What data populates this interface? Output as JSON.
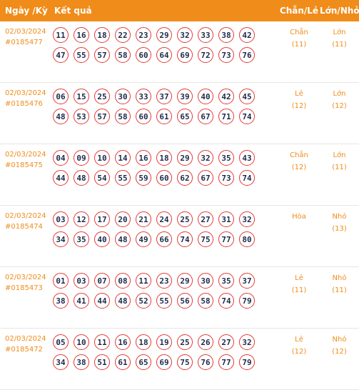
{
  "header": {
    "date_label": "Ngày /Kỳ",
    "result_label": "Kết quả",
    "even_odd_label": "Chẵn/Lẻ",
    "big_small_label": "Lớn/Nhỏ"
  },
  "rows": [
    {
      "date": "02/03/2024",
      "draw": "#0185477",
      "numbers": [
        "11",
        "16",
        "18",
        "22",
        "23",
        "29",
        "32",
        "33",
        "38",
        "42",
        "47",
        "55",
        "57",
        "58",
        "60",
        "64",
        "69",
        "72",
        "73",
        "76"
      ],
      "even_odd": "Chẵn",
      "even_odd_count": "(11)",
      "big_small": "Lớn",
      "big_small_count": "(11)"
    },
    {
      "date": "02/03/2024",
      "draw": "#0185476",
      "numbers": [
        "06",
        "15",
        "25",
        "30",
        "33",
        "37",
        "39",
        "40",
        "42",
        "45",
        "48",
        "53",
        "57",
        "58",
        "60",
        "61",
        "65",
        "67",
        "71",
        "74"
      ],
      "even_odd": "Lẻ",
      "even_odd_count": "(12)",
      "big_small": "Lớn",
      "big_small_count": "(12)"
    },
    {
      "date": "02/03/2024",
      "draw": "#0185475",
      "numbers": [
        "04",
        "09",
        "10",
        "14",
        "16",
        "18",
        "29",
        "32",
        "35",
        "43",
        "44",
        "48",
        "54",
        "55",
        "59",
        "60",
        "62",
        "67",
        "73",
        "74"
      ],
      "even_odd": "Chẵn",
      "even_odd_count": "(12)",
      "big_small": "Lớn",
      "big_small_count": "(11)"
    },
    {
      "date": "02/03/2024",
      "draw": "#0185474",
      "numbers": [
        "03",
        "12",
        "17",
        "20",
        "21",
        "24",
        "25",
        "27",
        "31",
        "32",
        "34",
        "35",
        "40",
        "48",
        "49",
        "66",
        "74",
        "75",
        "77",
        "80"
      ],
      "even_odd": "Hòa",
      "even_odd_count": "",
      "big_small": "Nhỏ",
      "big_small_count": "(13)"
    },
    {
      "date": "02/03/2024",
      "draw": "#0185473",
      "numbers": [
        "01",
        "03",
        "07",
        "08",
        "11",
        "23",
        "29",
        "30",
        "35",
        "37",
        "38",
        "41",
        "44",
        "48",
        "52",
        "55",
        "56",
        "58",
        "74",
        "79"
      ],
      "even_odd": "Lẻ",
      "even_odd_count": "(11)",
      "big_small": "Nhỏ",
      "big_small_count": "(11)"
    },
    {
      "date": "02/03/2024",
      "draw": "#0185472",
      "numbers": [
        "05",
        "10",
        "11",
        "16",
        "18",
        "19",
        "25",
        "26",
        "27",
        "32",
        "34",
        "38",
        "51",
        "61",
        "65",
        "69",
        "75",
        "76",
        "77",
        "79"
      ],
      "even_odd": "Lẻ",
      "even_odd_count": "(12)",
      "big_small": "Nhỏ",
      "big_small_count": "(12)"
    }
  ],
  "colors": {
    "accent": "#f08c19",
    "ball_border": "#e53935",
    "ball_text": "#1e2a4a"
  }
}
